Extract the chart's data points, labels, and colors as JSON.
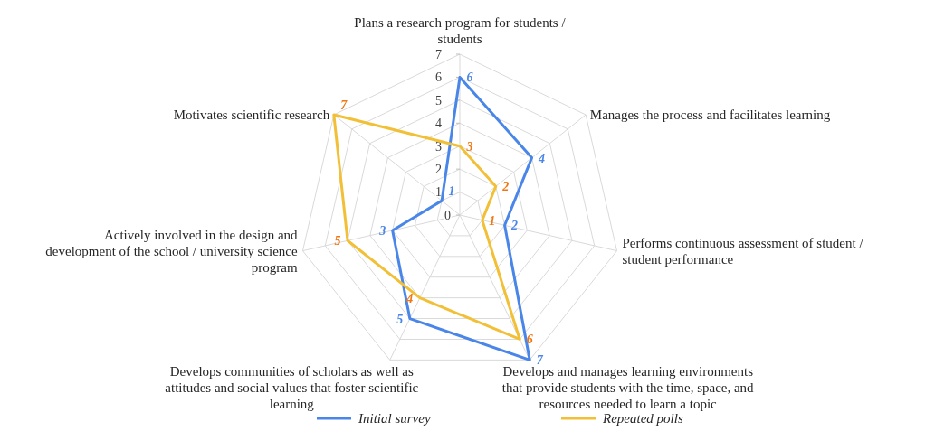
{
  "chart_data": {
    "type": "radar",
    "categories": [
      "Plans a research program for students / students",
      "Manages the process and facilitates learning",
      "Performs continuous assessment of student / student performance",
      "Develops and manages learning environments that provide students with the time, space, and resources needed to learn a topic",
      "Develops communities of scholars as well as attitudes and social values that foster scientific learning",
      "Actively involved in the design and development of the school / university science program",
      "Motivates scientific research"
    ],
    "series": [
      {
        "name": "Initial survey",
        "color": "#4a86e8",
        "values": [
          6,
          4,
          2,
          7,
          5,
          3,
          1
        ]
      },
      {
        "name": "Repeated polls",
        "color": "#f2c037",
        "values": [
          3,
          2,
          1,
          6,
          4,
          5,
          7
        ]
      }
    ],
    "ylim": [
      0,
      7
    ],
    "yticks": [
      0,
      1,
      2,
      3,
      4,
      5,
      6,
      7
    ],
    "grid": true,
    "data_labels": true,
    "legend": "bottom"
  }
}
